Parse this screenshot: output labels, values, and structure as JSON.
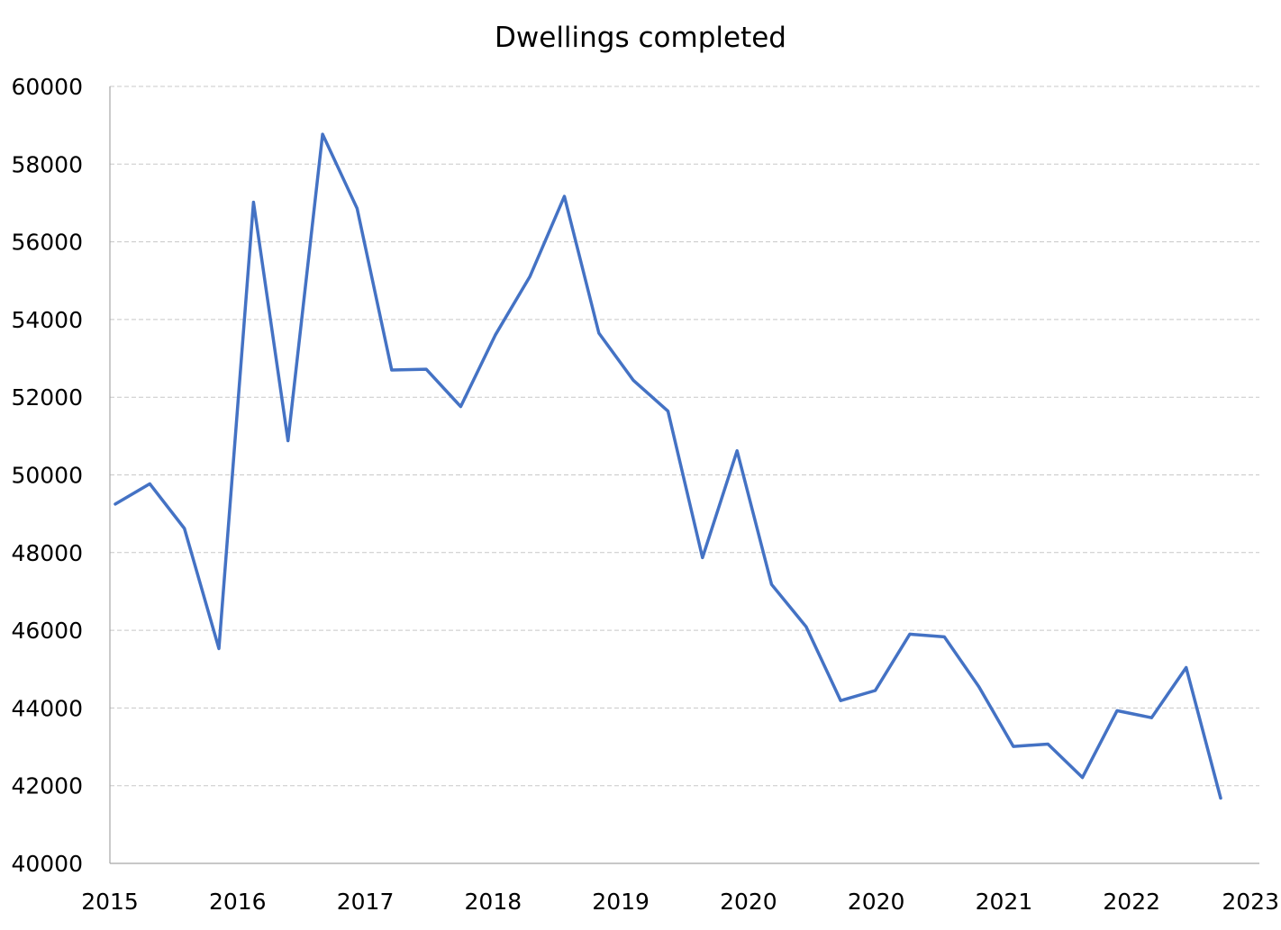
{
  "chart_data": {
    "type": "line",
    "title": "Dwellings completed",
    "xlabel": "",
    "ylabel": "",
    "ylim": [
      40000,
      60000
    ],
    "yticks": [
      40000,
      42000,
      44000,
      46000,
      48000,
      50000,
      52000,
      54000,
      56000,
      58000,
      60000
    ],
    "xtick_labels": [
      "2015",
      "2016",
      "2017",
      "2018",
      "2019",
      "2020",
      "2020",
      "2021",
      "2022",
      "2023"
    ],
    "grid": true,
    "legend": "none",
    "series": [
      {
        "color": "#4472c4",
        "values": [
          49250,
          49770,
          48620,
          45530,
          57020,
          50880,
          58770,
          56860,
          52700,
          52720,
          51760,
          53600,
          55100,
          57170,
          53650,
          52430,
          51640,
          47870,
          50620,
          47180,
          46090,
          44190,
          44450,
          45900,
          45830,
          44550,
          43010,
          43070,
          42210,
          43930,
          43750,
          45040,
          41680
        ]
      }
    ]
  }
}
